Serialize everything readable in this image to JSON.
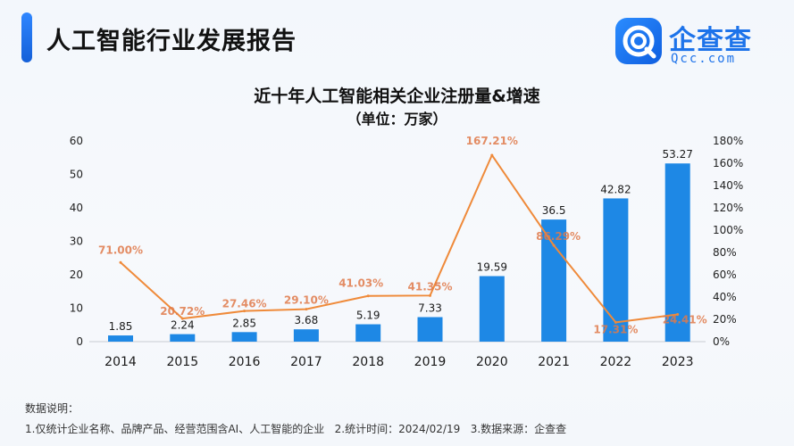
{
  "header": {
    "title": "人工智能行业发展报告"
  },
  "logo": {
    "name": "企查查",
    "sub": "Qcc.com"
  },
  "notes": {
    "heading": "数据说明：",
    "body": "1.仅统计企业名称、品牌产品、经营范围含AI、人工智能的企业   2.统计时间：2024/02/19   3.数据来源：企查查"
  },
  "colors": {
    "accent": "#1f77e6",
    "bar": "#1e88e5",
    "line": "#ef8a3a",
    "line_label": "#e07a4a"
  },
  "chart_data": {
    "type": "bar",
    "title": "近十年人工智能相关企业注册量&增速",
    "subtitle": "（单位：万家）",
    "categories": [
      "2014",
      "2015",
      "2016",
      "2017",
      "2018",
      "2019",
      "2020",
      "2021",
      "2022",
      "2023"
    ],
    "series": [
      {
        "type": "bar",
        "axis": "left",
        "values": [
          1.85,
          2.24,
          2.85,
          3.68,
          5.19,
          7.33,
          19.59,
          36.5,
          42.82,
          53.27
        ],
        "labels": [
          "1.85",
          "2.24",
          "2.85",
          "3.68",
          "5.19",
          "7.33",
          "19.59",
          "36.5",
          "42.82",
          "53.27"
        ]
      },
      {
        "type": "line",
        "axis": "right",
        "values": [
          71.0,
          20.72,
          27.46,
          29.1,
          41.03,
          41.35,
          167.21,
          86.29,
          17.31,
          24.41
        ],
        "labels": [
          "71.00%",
          "20.72%",
          "27.46%",
          "29.10%",
          "41.03%",
          "41.35%",
          "167.21%",
          "86.29%",
          "17.31%",
          "24.41%"
        ]
      }
    ],
    "y_left": {
      "min": 0,
      "max": 60,
      "ticks": [
        "0",
        "10",
        "20",
        "30",
        "40",
        "50",
        "60"
      ]
    },
    "y_right": {
      "min": 0,
      "max": 180,
      "ticks": [
        "0%",
        "20%",
        "40%",
        "60%",
        "80%",
        "100%",
        "120%",
        "140%",
        "160%",
        "180%"
      ]
    },
    "grid": false,
    "legend": "none"
  }
}
